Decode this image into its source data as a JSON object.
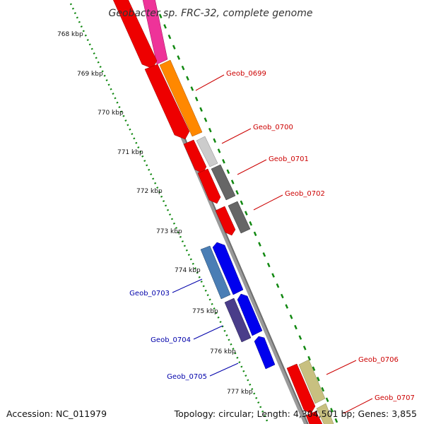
{
  "title": "Geobacter sp. FRC-32, complete genome",
  "accession": "Accession: NC_011979",
  "summary": "Topology: circular; Length: 4,304,501 bp; Genes: 3,855",
  "ticks": [
    "768 kbp",
    "769 kbp",
    "770 kbp",
    "771 kbp",
    "772 kbp",
    "773 kbp",
    "774 kbp",
    "775 kbp",
    "776 kbp",
    "777 kbp"
  ],
  "forward_labels": [
    "Geob_0699",
    "Geob_0700",
    "Geob_0701",
    "Geob_0702",
    "Geob_0706",
    "Geob_0707"
  ],
  "reverse_labels": [
    "Geob_0703",
    "Geob_0704",
    "Geob_0705"
  ],
  "colors": {
    "forward_label": "#cc0000",
    "reverse_label": "#0000aa",
    "backbone": "#8a8a8a",
    "tick_marks": "#118811",
    "cds_red": "#ee0000",
    "blue": "#0000ee"
  }
}
